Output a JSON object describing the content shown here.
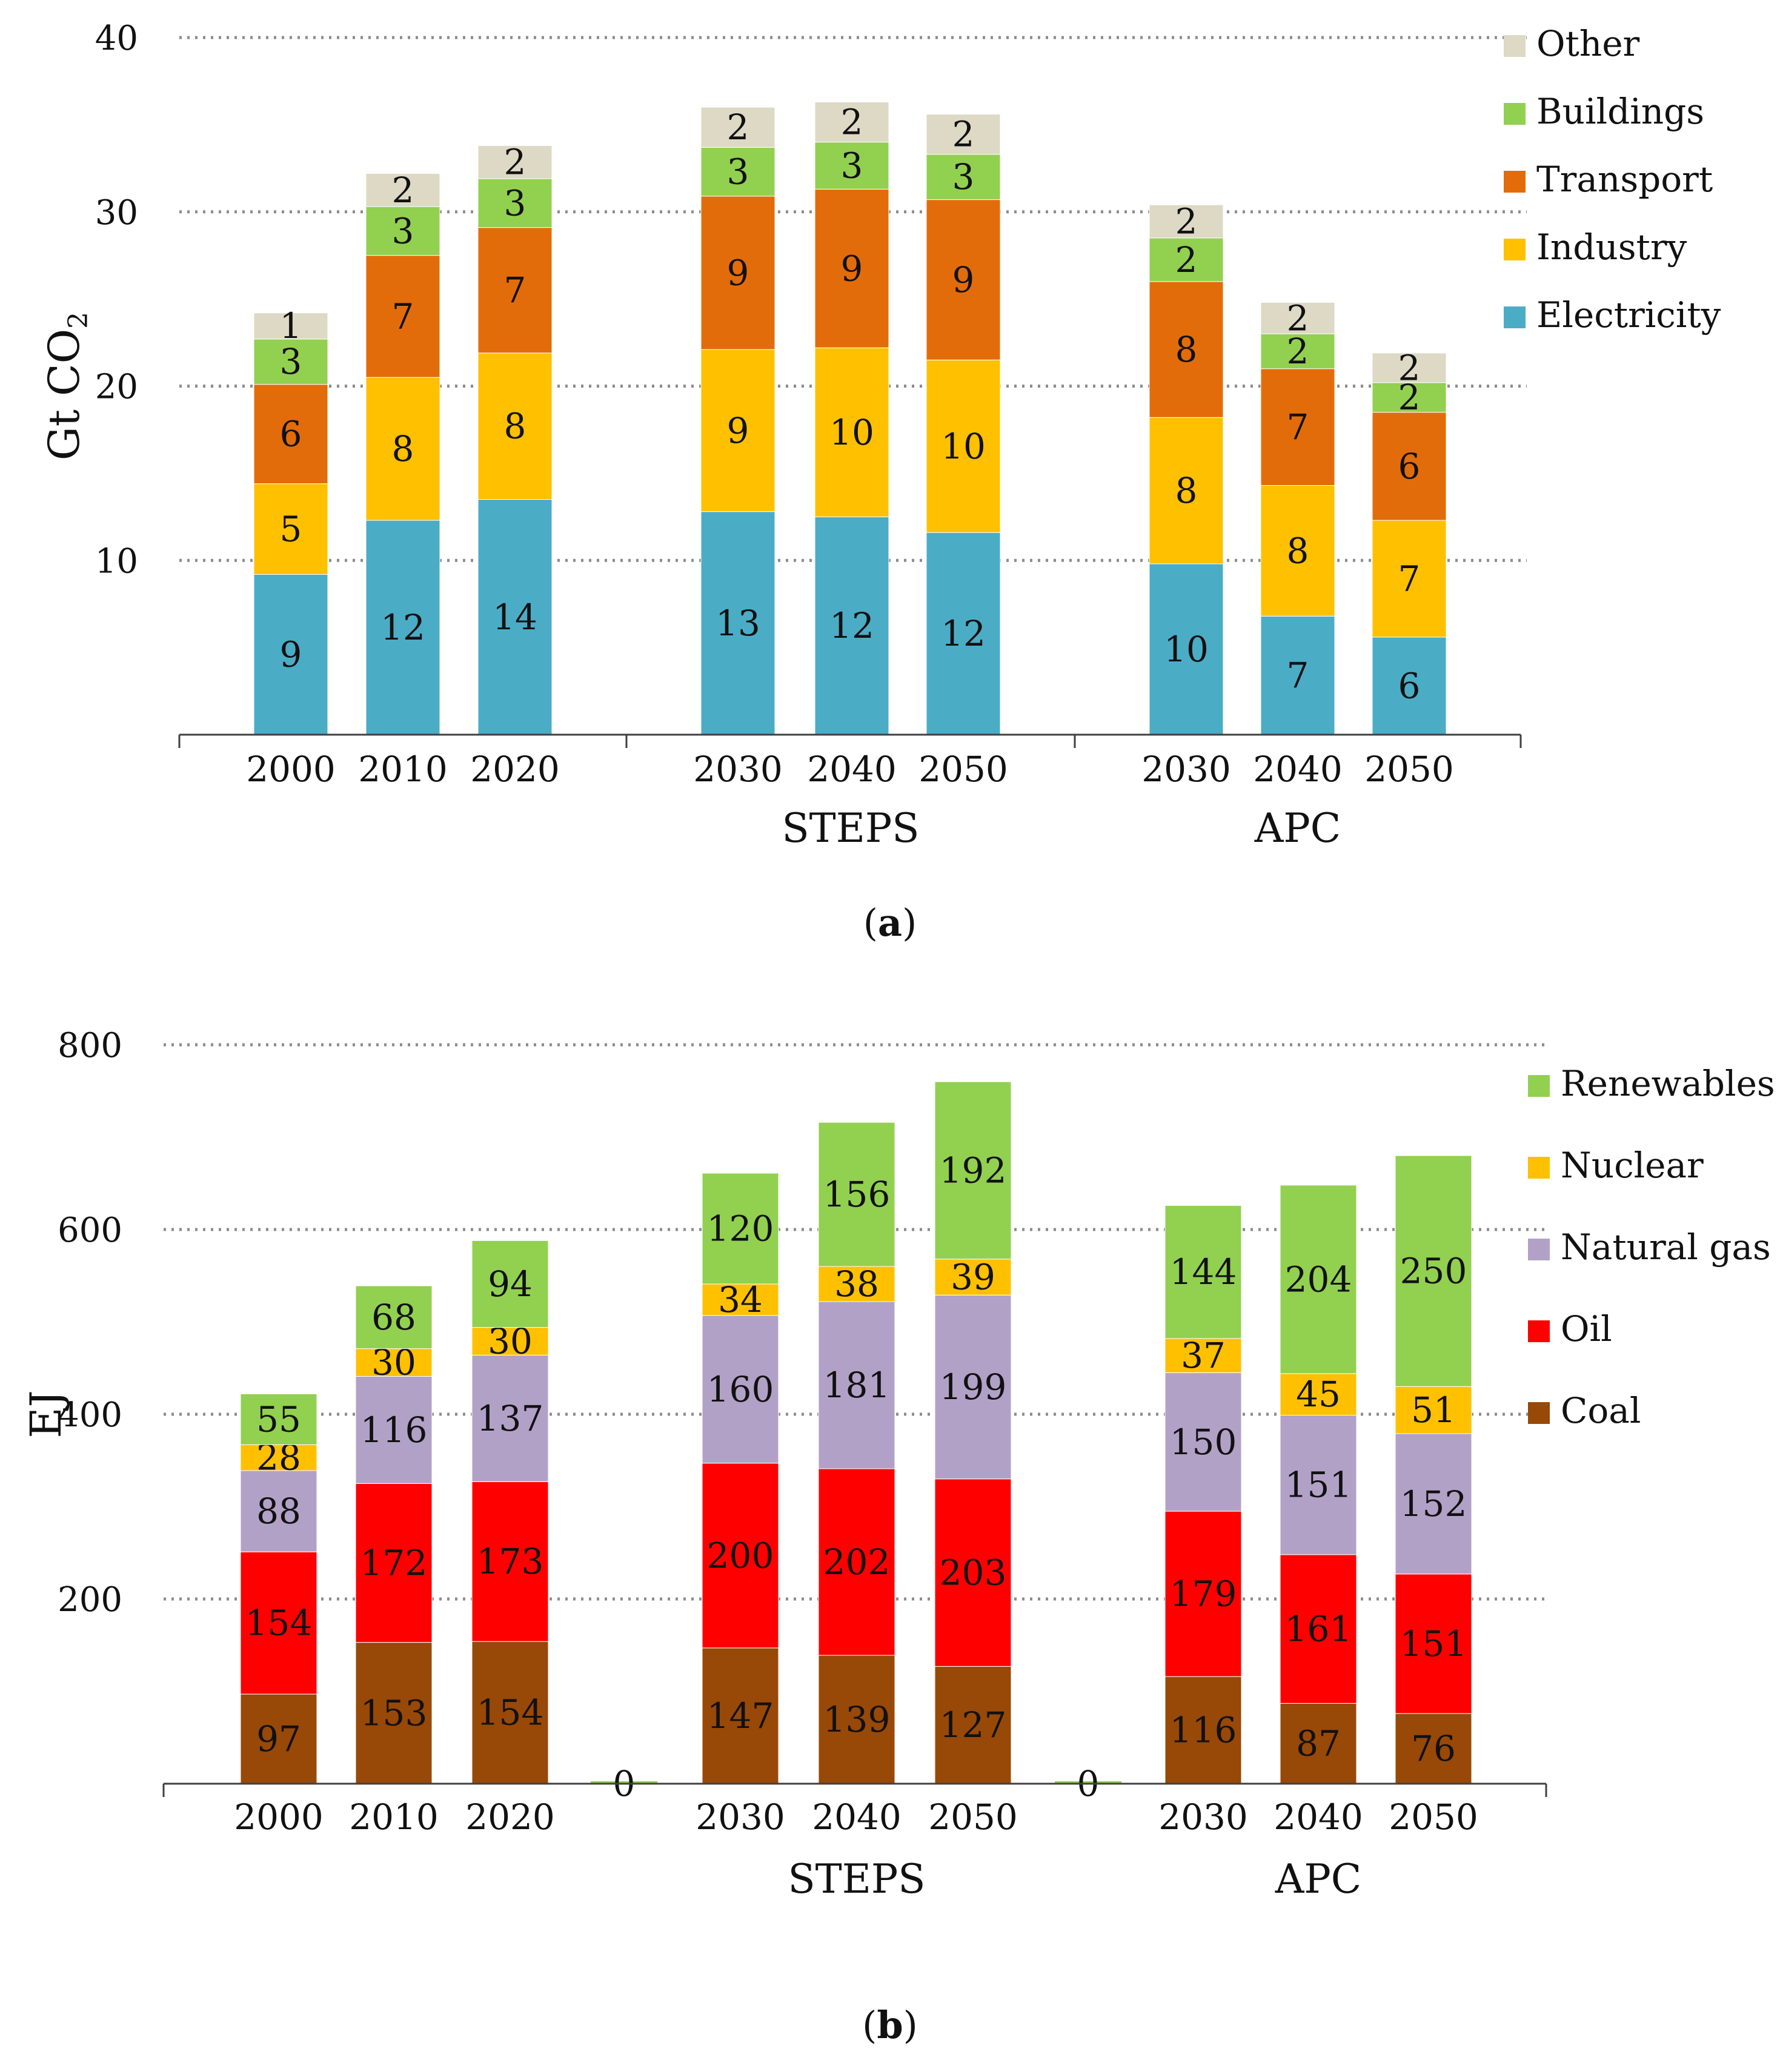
{
  "chart_data": [
    {
      "type": "bar",
      "stacked": true,
      "categories": [
        "2000",
        "2010",
        "2020",
        "2030",
        "2040",
        "2050",
        "2030",
        "2040",
        "2050"
      ],
      "groups": [
        {
          "label": "",
          "categories": [
            0,
            1,
            2
          ]
        },
        {
          "label": "STEPS",
          "categories": [
            3,
            4,
            5
          ]
        },
        {
          "label": "APC",
          "categories": [
            6,
            7,
            8
          ]
        }
      ],
      "series": [
        {
          "name": "Electricity",
          "color": "#4bacc6",
          "values": [
            9.2,
            12.3,
            13.5,
            12.8,
            12.5,
            11.6,
            9.8,
            6.8,
            5.6
          ],
          "labels": [
            "9",
            "12",
            "14",
            "13",
            "12",
            "12",
            "10",
            "7",
            "6"
          ]
        },
        {
          "name": "Industry",
          "color": "#ffc000",
          "values": [
            5.2,
            8.2,
            8.4,
            9.3,
            9.7,
            9.9,
            8.4,
            7.5,
            6.7
          ],
          "labels": [
            "5",
            "8",
            "8",
            "9",
            "10",
            "10",
            "8",
            "8",
            "7"
          ]
        },
        {
          "name": "Transport",
          "color": "#e36c0a",
          "values": [
            5.7,
            7.0,
            7.2,
            8.8,
            9.1,
            9.2,
            7.8,
            6.7,
            6.2
          ],
          "labels": [
            "6",
            "7",
            "7",
            "9",
            "9",
            "9",
            "8",
            "7",
            "6"
          ]
        },
        {
          "name": "Buildings",
          "color": "#92d050",
          "values": [
            2.6,
            2.8,
            2.8,
            2.8,
            2.7,
            2.6,
            2.5,
            2.0,
            1.7
          ],
          "labels": [
            "3",
            "3",
            "3",
            "3",
            "3",
            "3",
            "2",
            "2",
            "2"
          ]
        },
        {
          "name": "Other",
          "color": "#ddd9c4",
          "values": [
            1.5,
            1.9,
            1.9,
            2.3,
            2.3,
            2.3,
            1.9,
            1.8,
            1.7
          ],
          "labels": [
            "1",
            "2",
            "2",
            "2",
            "2",
            "2",
            "2",
            "2",
            "2"
          ]
        }
      ],
      "ylabel": "Gt CO₂",
      "yticks": [
        10,
        20,
        30,
        40
      ],
      "ylim": [
        0,
        40
      ],
      "grid": true,
      "legend": "top-right",
      "caption_letter": "a"
    },
    {
      "type": "bar",
      "stacked": true,
      "categories": [
        "2000",
        "2010",
        "2020",
        "",
        "2030",
        "2040",
        "2050",
        "",
        "2030",
        "2040",
        "2050"
      ],
      "groups": [
        {
          "label": "",
          "categories": [
            0,
            1,
            2
          ]
        },
        {
          "label": "STEPS",
          "categories": [
            4,
            5,
            6
          ]
        },
        {
          "label": "APC",
          "categories": [
            8,
            9,
            10
          ]
        }
      ],
      "separator_labels": [
        {
          "category": 3,
          "text": "0"
        },
        {
          "category": 7,
          "text": "0"
        }
      ],
      "series": [
        {
          "name": "Coal",
          "color": "#984807",
          "values": [
            97,
            153,
            154,
            0,
            147,
            139,
            127,
            0,
            116,
            87,
            76
          ]
        },
        {
          "name": "Oil",
          "color": "#ff0000",
          "values": [
            154,
            172,
            173,
            0,
            200,
            202,
            203,
            0,
            179,
            161,
            151
          ]
        },
        {
          "name": "Natural gas",
          "color": "#b2a1c7",
          "values": [
            88,
            116,
            137,
            0,
            160,
            181,
            199,
            0,
            150,
            151,
            152
          ]
        },
        {
          "name": "Nuclear",
          "color": "#ffc000",
          "values": [
            28,
            30,
            30,
            0,
            34,
            38,
            39,
            0,
            37,
            45,
            51
          ]
        },
        {
          "name": "Renewables",
          "color": "#92d050",
          "values": [
            55,
            68,
            94,
            0,
            120,
            156,
            192,
            0,
            144,
            204,
            250
          ]
        }
      ],
      "ylabel": "EJ",
      "yticks": [
        200,
        400,
        600,
        800
      ],
      "ylim": [
        0,
        800
      ],
      "grid": true,
      "legend": "top-right",
      "caption_letter": "b"
    }
  ]
}
